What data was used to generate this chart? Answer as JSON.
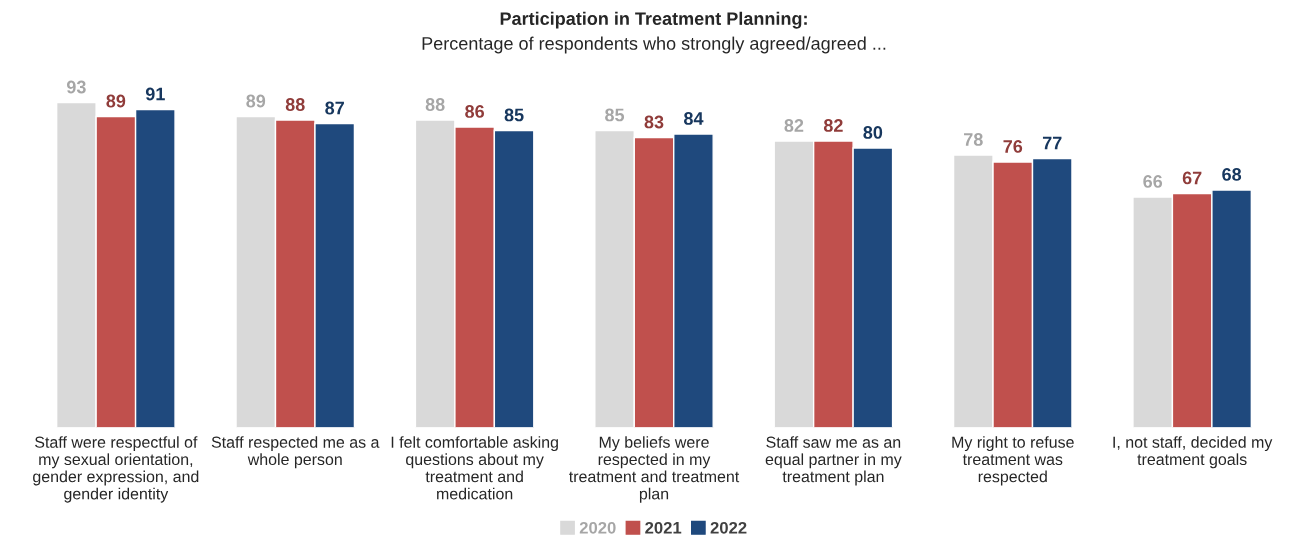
{
  "chart_data": {
    "type": "bar",
    "title": "Participation in Treatment Planning:",
    "subtitle": "Percentage of respondents who strongly agreed/agreed ...",
    "categories": [
      "Staff were respectful of\nmy sexual orientation,\ngender expression, and\ngender identity",
      "Staff respected me as a\nwhole person",
      "I felt comfortable asking\nquestions about my\ntreatment and\nmedication",
      "My beliefs were\nrespected in my\ntreatment and treatment\nplan",
      "Staff saw me as an\nequal partner in my\ntreatment plan",
      "My right to refuse\ntreatment was\nrespected",
      "I, not staff, decided my\ntreatment goals"
    ],
    "series": [
      {
        "name": "2020",
        "color": "#d9d9d9",
        "values": [
          93,
          89,
          88,
          85,
          82,
          78,
          66
        ]
      },
      {
        "name": "2021",
        "color": "#c0504d",
        "values": [
          89,
          88,
          86,
          83,
          82,
          76,
          67
        ]
      },
      {
        "name": "2022",
        "color": "#1f497d",
        "values": [
          91,
          87,
          85,
          84,
          80,
          77,
          68
        ]
      }
    ],
    "data_labels": true,
    "legend": "bottom"
  }
}
